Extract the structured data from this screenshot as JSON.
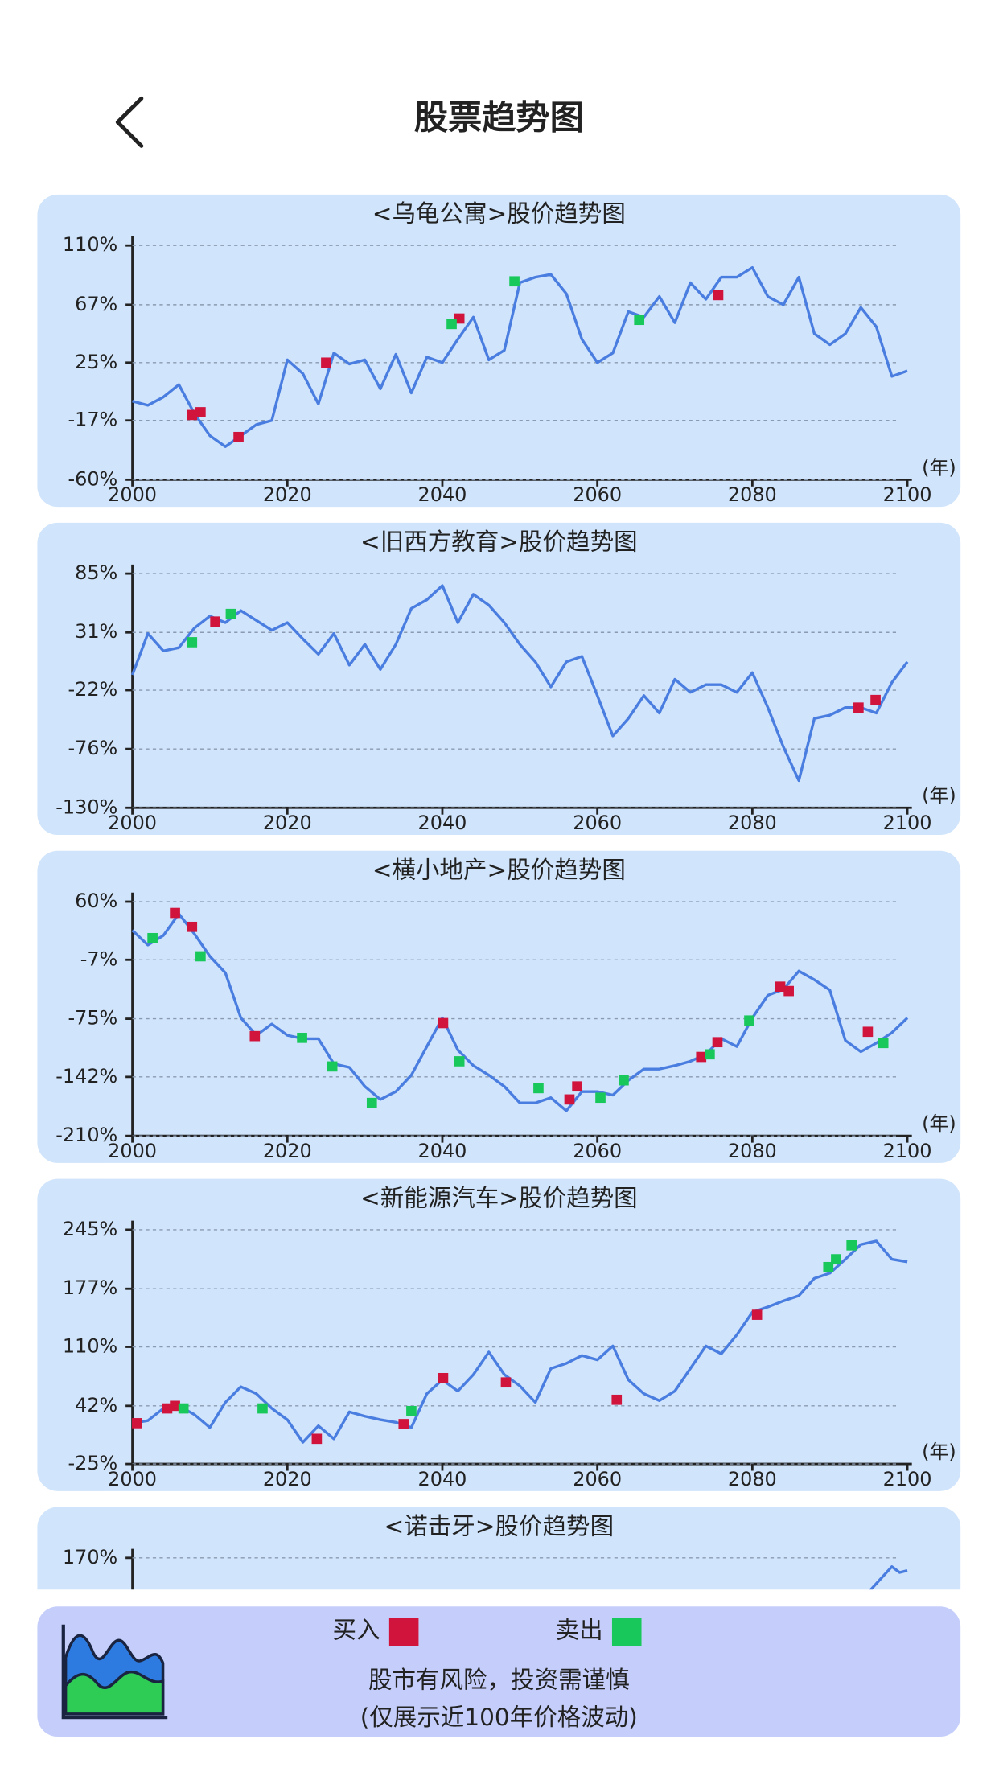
{
  "header": {
    "title": "股票趋势图"
  },
  "chart_data": [
    {
      "type": "line",
      "title": "<乌龟公寓>股价趋势图",
      "x_unit": "(年)",
      "color": "#4a7de0",
      "grid": true,
      "xlim": [
        2000,
        2100
      ],
      "xticks": [
        2000,
        2020,
        2040,
        2060,
        2080,
        2100
      ],
      "ylim": [
        -60,
        110
      ],
      "yticks": [
        {
          "value": -60,
          "label": "-60%"
        },
        {
          "value": -17,
          "label": "-17%"
        },
        {
          "value": 25,
          "label": "25%"
        },
        {
          "value": 67,
          "label": "67%"
        },
        {
          "value": 110,
          "label": "110%"
        }
      ],
      "x": [
        2000,
        2002,
        2004,
        2006,
        2008,
        2010,
        2012,
        2014,
        2016,
        2018,
        2020,
        2022,
        2024,
        2026,
        2028,
        2030,
        2032,
        2034,
        2036,
        2038,
        2040,
        2042,
        2044,
        2046,
        2048,
        2050,
        2052,
        2054,
        2056,
        2058,
        2060,
        2062,
        2064,
        2066,
        2068,
        2070,
        2072,
        2074,
        2076,
        2078,
        2080,
        2082,
        2084,
        2086,
        2088,
        2090,
        2092,
        2094,
        2096,
        2098,
        2100
      ],
      "values": [
        -3,
        -6,
        0,
        9,
        -12,
        -28,
        -36,
        -28,
        -20,
        -17,
        27,
        17,
        -5,
        32,
        24,
        27,
        6,
        31,
        3,
        29,
        25,
        42,
        58,
        27,
        34,
        83,
        87,
        89,
        75,
        42,
        25,
        32,
        62,
        58,
        73,
        54,
        83,
        71,
        87,
        87,
        94,
        73,
        67,
        87,
        46,
        38,
        46,
        65,
        51,
        15,
        19
      ],
      "buy": {
        "x": [
          2007.7,
          2008.8,
          2013.7,
          2025,
          2042.2,
          2075.6
        ],
        "values": [
          -13,
          -11,
          -29,
          25,
          57,
          74
        ]
      },
      "sell": {
        "x": [
          2041.2,
          2049.3,
          2065.4
        ],
        "values": [
          53,
          84,
          56
        ]
      }
    },
    {
      "type": "line",
      "title": "<旧西方教育>股价趋势图",
      "x_unit": "(年)",
      "color": "#4a7de0",
      "grid": true,
      "xlim": [
        2000,
        2100
      ],
      "xticks": [
        2000,
        2020,
        2040,
        2060,
        2080,
        2100
      ],
      "ylim": [
        -130,
        85
      ],
      "yticks": [
        {
          "value": -130,
          "label": "-130%"
        },
        {
          "value": -76,
          "label": "-76%"
        },
        {
          "value": -22,
          "label": "-22%"
        },
        {
          "value": 31,
          "label": "31%"
        },
        {
          "value": 85,
          "label": "85%"
        }
      ],
      "x": [
        2000,
        2002,
        2004,
        2006,
        2008,
        2010,
        2012,
        2014,
        2016,
        2018,
        2020,
        2022,
        2024,
        2026,
        2028,
        2030,
        2032,
        2034,
        2036,
        2038,
        2040,
        2042,
        2044,
        2046,
        2048,
        2050,
        2052,
        2054,
        2056,
        2058,
        2060,
        2062,
        2064,
        2066,
        2068,
        2070,
        2072,
        2074,
        2076,
        2078,
        2080,
        2082,
        2084,
        2086,
        2088,
        2090,
        2092,
        2094,
        2096,
        2098,
        2100
      ],
      "values": [
        -8,
        30,
        14,
        17,
        35,
        46,
        40,
        51,
        42,
        33,
        40,
        25,
        11,
        30,
        1,
        20,
        -3,
        20,
        53,
        61,
        74,
        40,
        66,
        56,
        40,
        20,
        4,
        -19,
        4,
        9,
        -27,
        -64,
        -48,
        -27,
        -43,
        -12,
        -24,
        -17,
        -17,
        -24,
        -6,
        -38,
        -74,
        -105,
        -48,
        -45,
        -38,
        -38,
        -43,
        -15,
        4
      ],
      "buy": {
        "x": [
          2010.7,
          2093.7,
          2095.9
        ],
        "values": [
          41,
          -38,
          -31
        ]
      },
      "sell": {
        "x": [
          2007.7,
          2012.7
        ],
        "values": [
          22,
          48
        ]
      }
    },
    {
      "type": "line",
      "title": "<横小地产>股价趋势图",
      "x_unit": "(年)",
      "color": "#4a7de0",
      "grid": true,
      "xlim": [
        2000,
        2100
      ],
      "xticks": [
        2000,
        2020,
        2040,
        2060,
        2080,
        2100
      ],
      "ylim": [
        -210,
        60
      ],
      "yticks": [
        {
          "value": -210,
          "label": "-210%"
        },
        {
          "value": -142,
          "label": "-142%"
        },
        {
          "value": -75,
          "label": "-75%"
        },
        {
          "value": -7,
          "label": "-7%"
        },
        {
          "value": 60,
          "label": "60%"
        }
      ],
      "x": [
        2000,
        2002,
        2004,
        2006,
        2008,
        2010,
        2012,
        2014,
        2016,
        2018,
        2020,
        2022,
        2024,
        2026,
        2028,
        2030,
        2032,
        2034,
        2036,
        2038,
        2040,
        2042,
        2044,
        2046,
        2048,
        2050,
        2052,
        2054,
        2056,
        2058,
        2060,
        2062,
        2064,
        2066,
        2068,
        2070,
        2072,
        2074,
        2076,
        2078,
        2080,
        2082,
        2084,
        2086,
        2088,
        2090,
        2092,
        2094,
        2096,
        2098,
        2100
      ],
      "values": [
        27,
        10,
        21,
        46,
        23,
        -3,
        -22,
        -74,
        -94,
        -81,
        -94,
        -98,
        -98,
        -127,
        -131,
        -153,
        -168,
        -159,
        -140,
        -107,
        -74,
        -111,
        -129,
        -140,
        -153,
        -172,
        -172,
        -166,
        -181,
        -159,
        -159,
        -163,
        -146,
        -133,
        -133,
        -129,
        -124,
        -116,
        -98,
        -107,
        -74,
        -48,
        -41,
        -20,
        -30,
        -42,
        -100,
        -113,
        -103,
        -91,
        -74
      ],
      "buy": {
        "x": [
          2005.5,
          2007.7,
          2015.8,
          2040.1,
          2056.4,
          2057.4,
          2073.4,
          2075.5,
          2083.6,
          2084.7,
          2094.9
        ],
        "values": [
          47,
          31,
          -95,
          -80,
          -168,
          -153,
          -119,
          -102,
          -38,
          -43,
          -90
        ]
      },
      "sell": {
        "x": [
          2002.6,
          2008.8,
          2021.9,
          2025.8,
          2030.9,
          2042.2,
          2052.4,
          2060.4,
          2063.4,
          2074.5,
          2079.6,
          2096.9
        ],
        "values": [
          18,
          -3,
          -97,
          -130,
          -172,
          -124,
          -155,
          -166,
          -146,
          -116,
          -77,
          -103
        ]
      }
    },
    {
      "type": "line",
      "title": "<新能源汽车>股价趋势图",
      "x_unit": "(年)",
      "color": "#4a7de0",
      "grid": true,
      "xlim": [
        2000,
        2100
      ],
      "xticks": [
        2000,
        2020,
        2040,
        2060,
        2080,
        2100
      ],
      "ylim": [
        -25,
        245
      ],
      "yticks": [
        {
          "value": -25,
          "label": "-25%"
        },
        {
          "value": 42,
          "label": "42%"
        },
        {
          "value": 110,
          "label": "110%"
        },
        {
          "value": 177,
          "label": "177%"
        },
        {
          "value": 245,
          "label": "245%"
        }
      ],
      "x": [
        2000,
        2002,
        2004,
        2006,
        2008,
        2010,
        2012,
        2014,
        2016,
        2018,
        2020,
        2022,
        2024,
        2026,
        2028,
        2030,
        2032,
        2034,
        2036,
        2038,
        2040,
        2042,
        2044,
        2046,
        2048,
        2050,
        2052,
        2054,
        2056,
        2058,
        2060,
        2062,
        2064,
        2066,
        2068,
        2070,
        2072,
        2074,
        2076,
        2078,
        2080,
        2082,
        2084,
        2086,
        2088,
        2090,
        2092,
        2094,
        2096,
        2098,
        2100
      ],
      "values": [
        22,
        25,
        39,
        42,
        32,
        17,
        46,
        64,
        56,
        39,
        26,
        0,
        19,
        4,
        35,
        30,
        26,
        23,
        17,
        56,
        72,
        59,
        78,
        104,
        78,
        65,
        46,
        85,
        91,
        100,
        95,
        111,
        72,
        56,
        48,
        59,
        85,
        111,
        102,
        124,
        150,
        156,
        163,
        169,
        189,
        195,
        211,
        228,
        232,
        211,
        208
      ],
      "buy": {
        "x": [
          2000.6,
          2004.5,
          2005.5,
          2023.8,
          2035,
          2040.1,
          2048.2,
          2062.5,
          2080.6
        ],
        "values": [
          22,
          39,
          42,
          4,
          21,
          74,
          69,
          49,
          147
        ]
      },
      "sell": {
        "x": [
          2006.6,
          2016.8,
          2036,
          2089.8,
          2090.8,
          2092.8
        ],
        "values": [
          39,
          39,
          36,
          202,
          211,
          227
        ]
      }
    },
    {
      "type": "line",
      "title": "<诺击牙>股价趋势图",
      "color": "#4a7de0",
      "grid": true,
      "xlim": [
        2000,
        2100
      ],
      "ylim": [
        -70,
        170
      ],
      "yticks": [
        {
          "value": 170,
          "label": "170%"
        }
      ],
      "x": [
        2095,
        2098,
        2099,
        2100
      ],
      "values": [
        135,
        161,
        155,
        157
      ]
    }
  ],
  "legend": {
    "buy": {
      "label": "买入",
      "color": "#d0143c"
    },
    "sell": {
      "label": "卖出",
      "color": "#19c85a"
    }
  },
  "footer": {
    "line1": "股市有风险，投资需谨慎",
    "line2": "(仅展示近100年价格波动)"
  }
}
